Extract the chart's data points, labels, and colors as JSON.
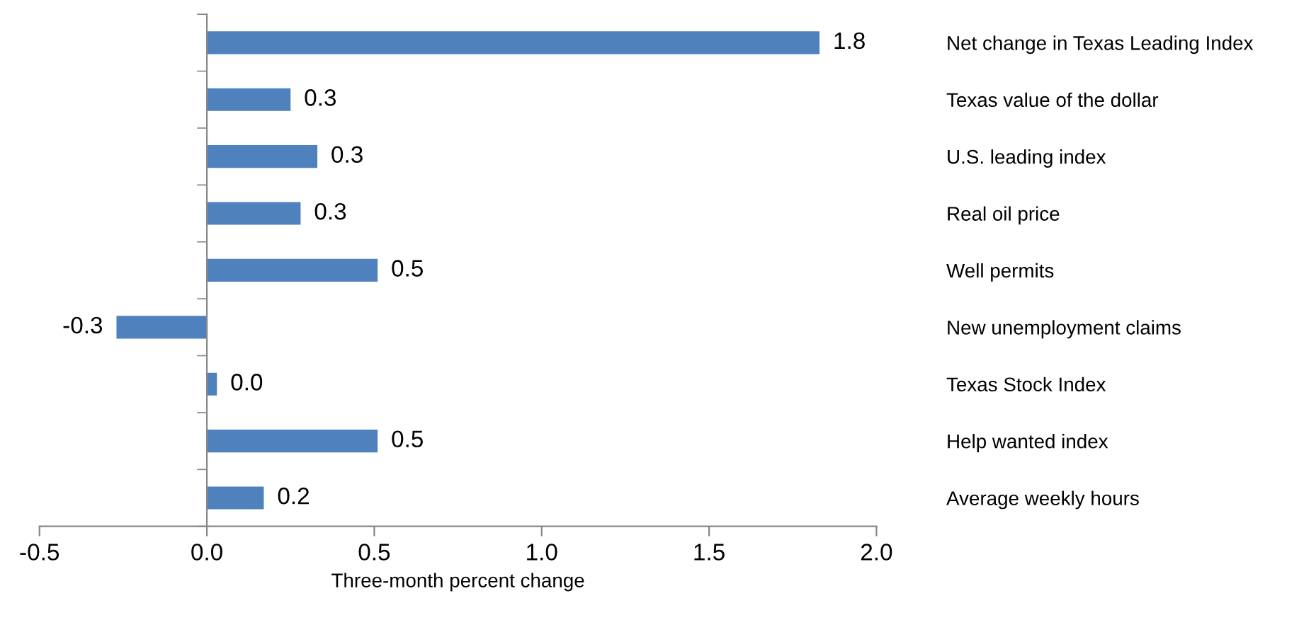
{
  "chart_data": {
    "type": "bar",
    "orientation": "horizontal",
    "xlabel": "Three-month percent change",
    "categories": [
      "Net change in Texas Leading Index",
      "Texas value of the dollar",
      "U.S. leading index",
      "Real oil price",
      "Well permits",
      "New unemployment claims",
      "Texas Stock Index",
      "Help wanted index",
      "Average weekly hours"
    ],
    "values": [
      1.83,
      0.25,
      0.33,
      0.28,
      0.51,
      -0.27,
      0.03,
      0.51,
      0.17
    ],
    "value_labels": [
      "1.8",
      "0.3",
      "0.3",
      "0.3",
      "0.5",
      "-0.3",
      "0.0",
      "0.5",
      "0.2"
    ],
    "color": "#4f81bd",
    "xlim": [
      -0.5,
      2.0
    ],
    "xticks": [
      {
        "value": -0.5,
        "label": "-0.5"
      },
      {
        "value": 0,
        "label": "0.0"
      },
      {
        "value": 0.5,
        "label": "0.5"
      },
      {
        "value": 1.0,
        "label": "1.0"
      },
      {
        "value": 1.5,
        "label": "1.5"
      },
      {
        "value": 2.0,
        "label": "2.0"
      }
    ],
    "legend": false
  }
}
